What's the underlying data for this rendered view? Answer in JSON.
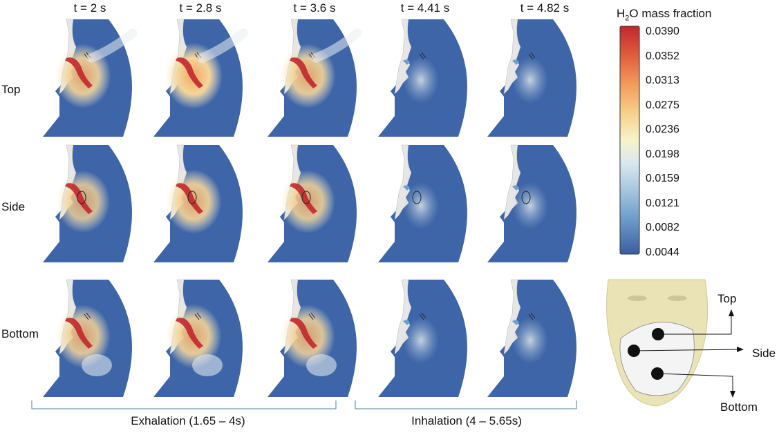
{
  "columns": [
    "t = 2 s",
    "t = 2.8 s",
    "t = 3.6 s",
    "t = 4.41 s",
    "t = 4.82 s"
  ],
  "rows": [
    "Top",
    "Side",
    "Bottom"
  ],
  "colorbar": {
    "title_main": "H",
    "title_sub": "2",
    "title_rest": "O mass fraction",
    "ticks": [
      "0.0390",
      "0.0352",
      "0.0313",
      "0.0275",
      "0.0236",
      "0.0198",
      "0.0159",
      "0.0121",
      "0.0082",
      "0.0044"
    ],
    "colors": [
      "#c1272d",
      "#de5a3a",
      "#ef9a5a",
      "#f7d08a",
      "#f8f3c8",
      "#d9e8f0",
      "#a7c6dd",
      "#6e9fcb",
      "#4573b3",
      "#3a5ea0"
    ]
  },
  "phases": [
    {
      "label": "Exhalation (1.65 – 4s)"
    },
    {
      "label": "Inhalation (4 – 5.65s)"
    }
  ],
  "mask_labels": {
    "top": "Top",
    "side": "Side",
    "bottom": "Bottom"
  },
  "plume_intensity": {
    "rows": [
      "Top",
      "Side",
      "Bottom"
    ],
    "values": [
      [
        0.9,
        1.0,
        0.9,
        0.25,
        0.15
      ],
      [
        0.8,
        0.9,
        0.85,
        0.25,
        0.15
      ],
      [
        0.85,
        0.9,
        0.85,
        0.15,
        0.1
      ]
    ]
  },
  "colors": {
    "field": "#3e65a7",
    "face": "#e6e6e6",
    "hot": "#c1272d"
  }
}
